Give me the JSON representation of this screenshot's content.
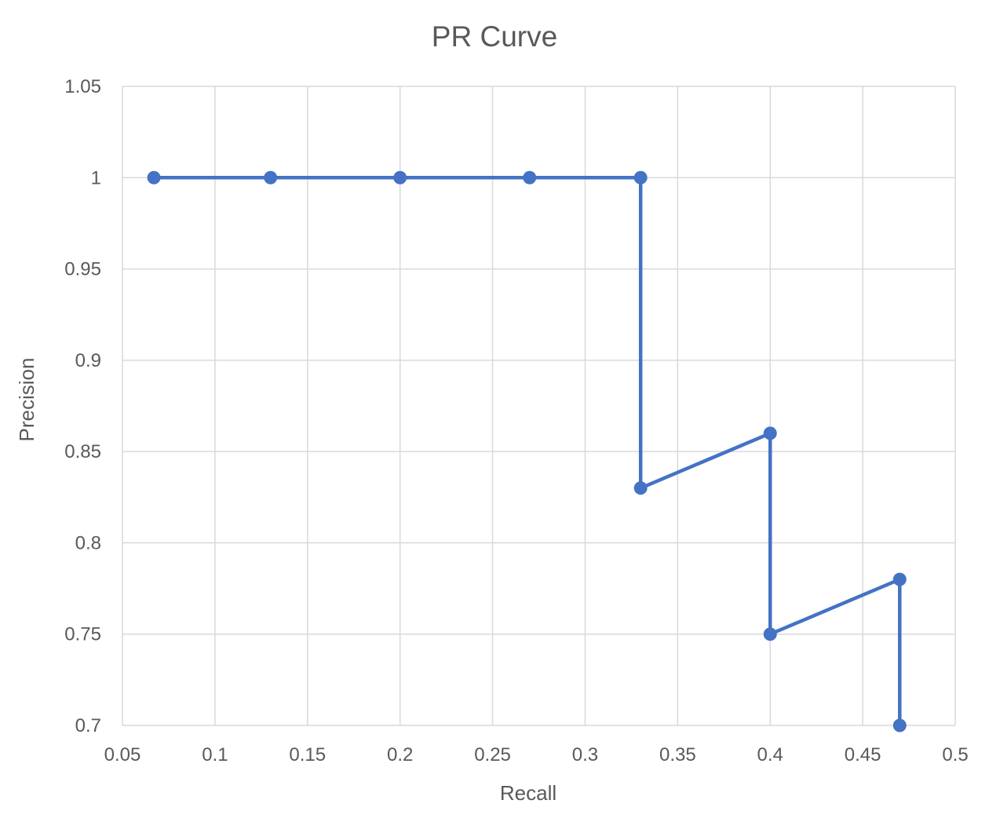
{
  "chart_data": {
    "type": "scatter",
    "title": "PR Curve",
    "xlabel": "Recall",
    "ylabel": "Precision",
    "xlim": [
      0.05,
      0.5
    ],
    "ylim": [
      0.7,
      1.05
    ],
    "x_ticks": [
      "0.05",
      "0.1",
      "0.15",
      "0.2",
      "0.25",
      "0.3",
      "0.35",
      "0.4",
      "0.45",
      "0.5"
    ],
    "y_ticks": [
      "0.7",
      "0.75",
      "0.8",
      "0.85",
      "0.9",
      "0.95",
      "1",
      "1.05"
    ],
    "grid": true,
    "legend": "none",
    "line_color": "#4472c4",
    "grid_color": "#d9d9d9",
    "text_color": "#595959",
    "series": [
      {
        "points": [
          {
            "x": 0.067,
            "y": 1.0
          },
          {
            "x": 0.13,
            "y": 1.0
          },
          {
            "x": 0.2,
            "y": 1.0
          },
          {
            "x": 0.27,
            "y": 1.0
          },
          {
            "x": 0.33,
            "y": 1.0
          },
          {
            "x": 0.33,
            "y": 0.83
          },
          {
            "x": 0.4,
            "y": 0.86
          },
          {
            "x": 0.4,
            "y": 0.75
          },
          {
            "x": 0.47,
            "y": 0.78
          },
          {
            "x": 0.47,
            "y": 0.7
          }
        ]
      }
    ]
  }
}
